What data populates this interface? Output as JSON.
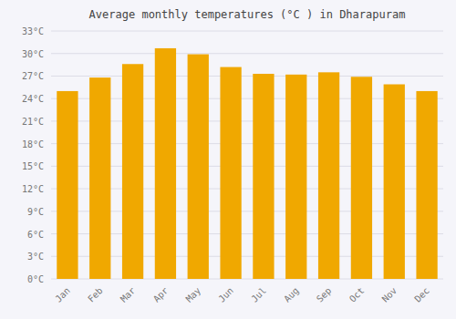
{
  "chart_data": {
    "type": "bar",
    "title": "Average monthly temperatures (°C ) in Dharapuram",
    "categories": [
      "Jan",
      "Feb",
      "Mar",
      "Apr",
      "May",
      "Jun",
      "Jul",
      "Aug",
      "Sep",
      "Oct",
      "Nov",
      "Dec"
    ],
    "values": [
      25.0,
      26.8,
      28.6,
      30.7,
      29.9,
      28.2,
      27.3,
      27.2,
      27.5,
      26.9,
      25.9,
      25.0
    ],
    "color": "#F0A800",
    "ylim": [
      0,
      33
    ],
    "yticks": [
      {
        "value": 0,
        "label": "0°C"
      },
      {
        "value": 3,
        "label": "3°C"
      },
      {
        "value": 6,
        "label": "6°C"
      },
      {
        "value": 9,
        "label": "9°C"
      },
      {
        "value": 12,
        "label": "12°C"
      },
      {
        "value": 15,
        "label": "15°C"
      },
      {
        "value": 18,
        "label": "18°C"
      },
      {
        "value": 21,
        "label": "21°C"
      },
      {
        "value": 24,
        "label": "24°C"
      },
      {
        "value": 27,
        "label": "27°C"
      },
      {
        "value": 30,
        "label": "30°C"
      },
      {
        "value": 33,
        "label": "33°C"
      }
    ],
    "grid": true
  }
}
